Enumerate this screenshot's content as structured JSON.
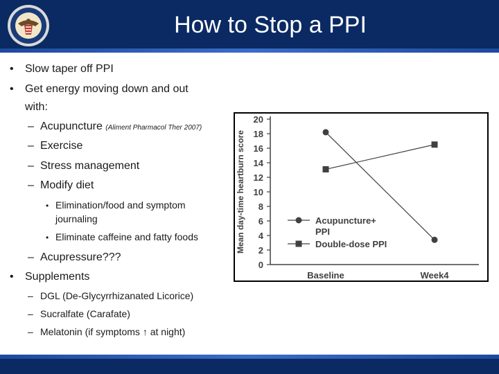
{
  "slide": {
    "title": "How to Stop a PPI"
  },
  "content": {
    "b1": "Slow taper off PPI",
    "b2_line1": "Get energy moving down and out",
    "b2_line2": "with:",
    "acupuncture": "Acupuncture",
    "acupuncture_cite": "(Aliment Pharmacol Ther 2007)",
    "exercise": "Exercise",
    "stress": "Stress management",
    "diet": "Modify diet",
    "diet_sub1_line1": "Elimination/food and symptom",
    "diet_sub1_line2": "journaling",
    "diet_sub2": "Eliminate caffeine and fatty foods",
    "acupressure": "Acupressure???",
    "b3": "Supplements",
    "dgl": "DGL (De-Glycyrrhizanated Licorice)",
    "sucralfate": "Sucralfate (Carafate)",
    "melatonin_pre": "Melatonin (if symptoms",
    "melatonin_arrow": "↑",
    "melatonin_post": "at night)",
    "bullet_char": "•",
    "dash_char": "–"
  },
  "chart_data": {
    "type": "line",
    "ylabel": "Mean day-time heartburn score",
    "xlabel": "",
    "categories": [
      "Baseline",
      "Week4"
    ],
    "ylim": [
      0,
      20
    ],
    "yticks": [
      0,
      2,
      4,
      6,
      8,
      10,
      12,
      14,
      16,
      18,
      20
    ],
    "series": [
      {
        "name": "Acupuncture+ PPI",
        "marker": "circle",
        "values": [
          18.2,
          3.4
        ]
      },
      {
        "name": "Double-dose PPI",
        "marker": "square",
        "values": [
          13.1,
          16.5
        ]
      }
    ],
    "legend_position": "lower-left",
    "grid": false,
    "colors": {
      "series": "#404040",
      "axis": "#404040"
    }
  }
}
